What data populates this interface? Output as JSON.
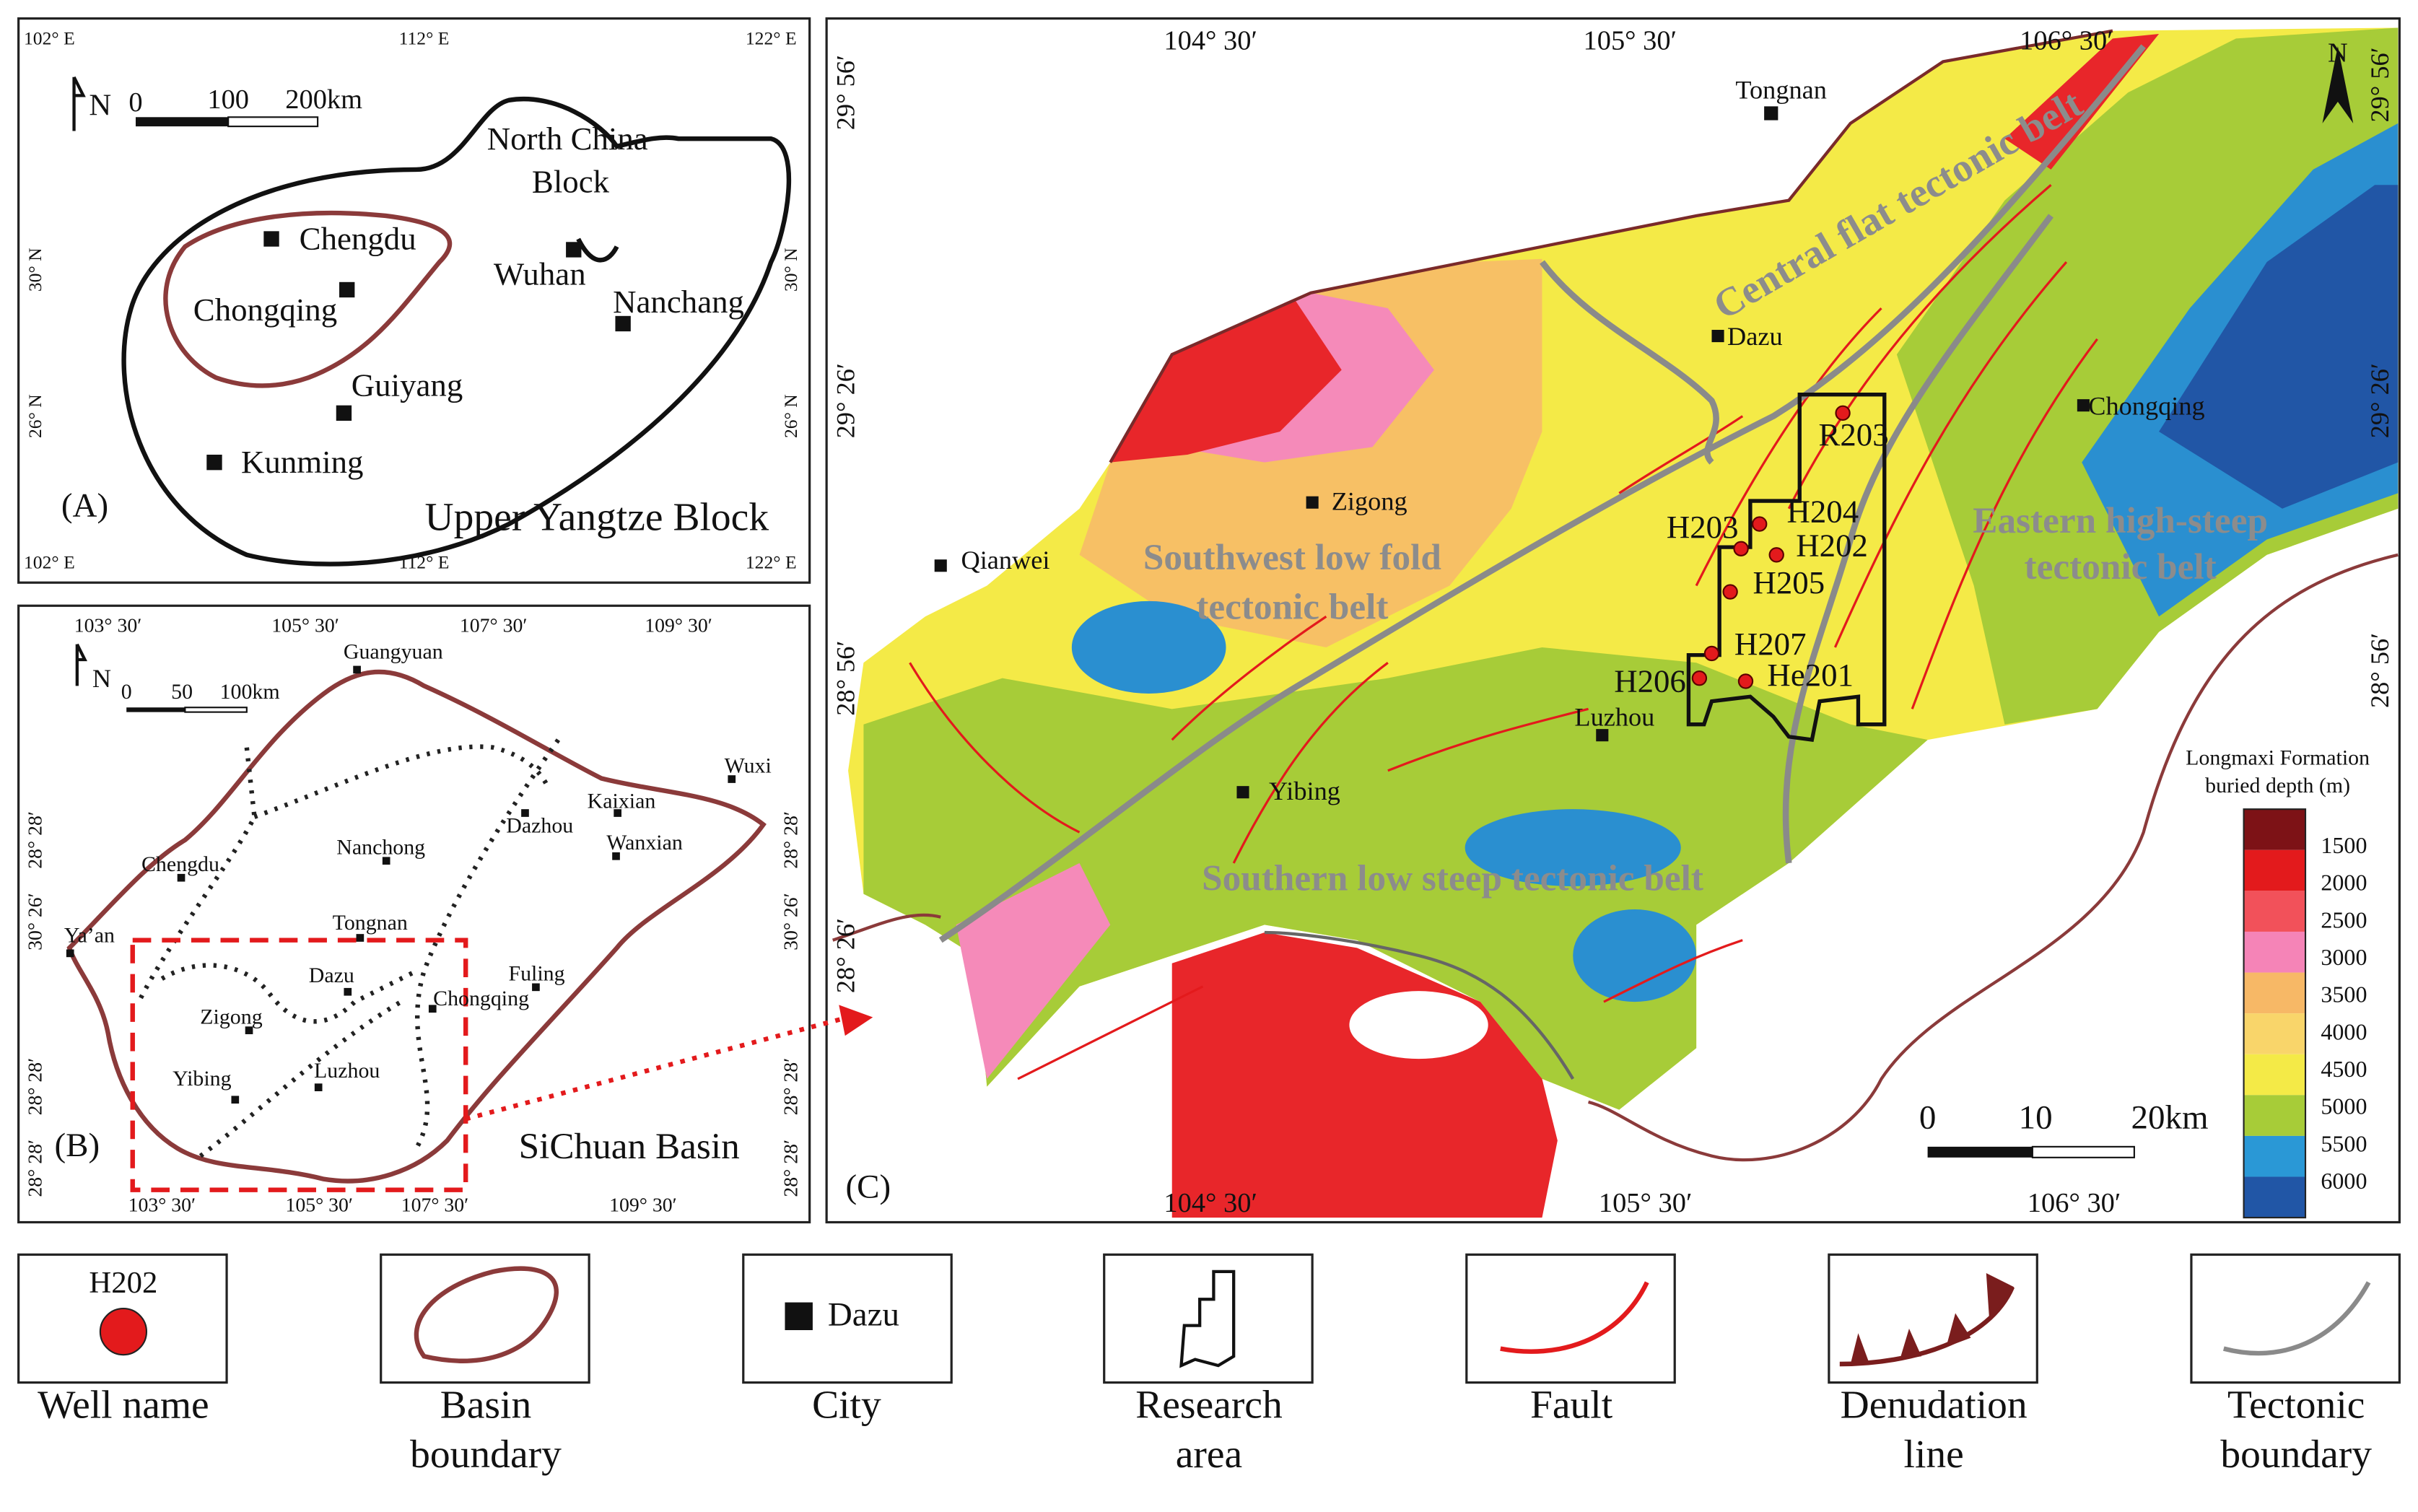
{
  "panel_a": {
    "label": "(A)",
    "north": "N",
    "lon_ticks": [
      "102° E",
      "112° E",
      "122° E"
    ],
    "lat_ticks": [
      "30° N",
      "26° N"
    ],
    "scale": [
      "0",
      "100",
      "200km"
    ],
    "places": [
      "North China",
      "Block",
      "Chengdu",
      "Wuhan",
      "Chongqing",
      "Nanchang",
      "Guiyang",
      "Kunming"
    ],
    "region": "Upper Yangtze Block"
  },
  "panel_b": {
    "label": "(B)",
    "north": "N",
    "lon_ticks": [
      "103° 30′",
      "105° 30′",
      "107° 30′",
      "109° 30′"
    ],
    "lat_ticks": [
      "28° 28′",
      "30° 26′",
      "28° 28′",
      "28° 28′"
    ],
    "scale": [
      "0",
      "50",
      "100km"
    ],
    "places": [
      "Guangyuan",
      "Wuxi",
      "Kaixian",
      "Dazhou",
      "Wanxian",
      "Chengdu",
      "Nanchong",
      "Ya’an",
      "Tongnan",
      "Dazu",
      "Fuling",
      "Zigong",
      "Chongqing",
      "Yibing",
      "Luzhou"
    ],
    "region": "SiChuan Basin"
  },
  "panel_c": {
    "label": "(C)",
    "north": "N",
    "lon_ticks": [
      "104° 30′",
      "105° 30′",
      "106° 30′"
    ],
    "lat_ticks": [
      "29° 56′",
      "29° 26′",
      "28° 56′",
      "28° 26′"
    ],
    "scale": [
      "0",
      "10",
      "20km"
    ],
    "cities": [
      "Tongnan",
      "Dazu",
      "Chongqing",
      "Zigong",
      "Qianwei",
      "Luzhou",
      "Yibing"
    ],
    "wells": [
      "R203",
      "H204",
      "H203",
      "H202",
      "H205",
      "H207",
      "H206",
      "He201"
    ],
    "belts": [
      "Central flat tectonic belt",
      "Southwest low fold",
      "tectonic belt",
      "Eastern high-steep",
      "tectonic belt",
      "Southern low steep tectonic belt"
    ],
    "depth_legend": {
      "title": [
        "Longmaxi Formation",
        "buried depth (m)"
      ],
      "labels": [
        1500,
        2000,
        2500,
        3000,
        3500,
        4000,
        4500,
        5000,
        5500,
        6000
      ]
    }
  },
  "legend": {
    "well_sample": "H202",
    "city_sample": "Dazu",
    "items": [
      [
        "Well name"
      ],
      [
        "Basin",
        "boundary"
      ],
      [
        "City"
      ],
      [
        "Research",
        "area"
      ],
      [
        "Fault"
      ],
      [
        "Denudation",
        "line"
      ],
      [
        "Tectonic",
        "boundary"
      ]
    ]
  }
}
